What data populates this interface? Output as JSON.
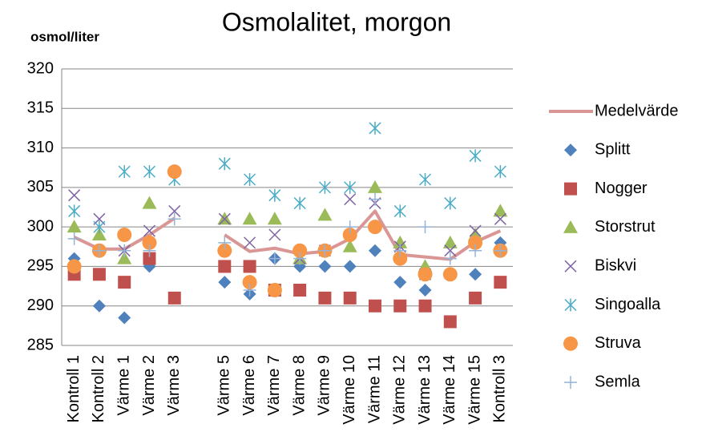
{
  "chart_data": {
    "type": "line-scatter",
    "title": "Osmolalitet, morgon",
    "y_label": "osmol/liter",
    "categories": [
      "Kontroll 1",
      "Kontroll 2",
      "Värme 1",
      "Värme 2",
      "Värme 3",
      null,
      "Värme 5",
      "Värme 6",
      "Värme 7",
      "Värme 8",
      "Värme 9",
      "Värme 10",
      "Värme 11",
      "Värme 12",
      "Värme 13",
      "Värme 14",
      "Värme 15",
      "Kontroll 3"
    ],
    "ylim": [
      285,
      320
    ],
    "yticks": [
      285,
      290,
      295,
      300,
      305,
      310,
      315,
      320
    ],
    "grid": true,
    "legend": "right",
    "series": [
      {
        "name": "Medelvärde",
        "color": "#d99694",
        "marker": "line",
        "values": [
          298.7,
          297.2,
          297.2,
          299,
          301.1,
          null,
          299,
          296.9,
          297.3,
          296.6,
          296.9,
          298.5,
          302,
          296.5,
          296.2,
          295.9,
          298.1,
          299.5
        ]
      },
      {
        "name": "Splitt",
        "color": "#4f81bd",
        "marker": "diamond",
        "values": [
          296,
          290,
          288.5,
          295,
          null,
          null,
          293,
          291.5,
          296,
          295,
          295,
          295,
          297,
          293,
          292,
          null,
          294,
          298
        ]
      },
      {
        "name": "Nogger",
        "color": "#c0504d",
        "marker": "square",
        "values": [
          294,
          294,
          293,
          296,
          291,
          null,
          295,
          295,
          292,
          292,
          291,
          291,
          290,
          290,
          290,
          288,
          291,
          293
        ]
      },
      {
        "name": "Storstrut",
        "color": "#9bbb59",
        "marker": "triangle",
        "values": [
          300,
          299,
          296,
          303,
          null,
          null,
          301,
          301,
          301,
          296,
          301.5,
          297.5,
          305,
          298,
          295,
          298,
          299,
          302
        ]
      },
      {
        "name": "Biskvi",
        "color": "#8064a2",
        "marker": "x",
        "values": [
          304,
          301,
          297,
          299.5,
          302,
          null,
          301,
          298,
          299,
          296,
          297,
          303.5,
          303,
          297.5,
          294,
          297,
          299.5,
          301
        ]
      },
      {
        "name": "Singoalla",
        "color": "#4bacc6",
        "marker": "star",
        "values": [
          302,
          300,
          307,
          307,
          306,
          null,
          308,
          306,
          304,
          303,
          305,
          305,
          312.5,
          302,
          306,
          303,
          309,
          307
        ]
      },
      {
        "name": "Struva",
        "color": "#f79646",
        "marker": "circle",
        "values": [
          295,
          297,
          299,
          298,
          307,
          null,
          297,
          293,
          292,
          297,
          297,
          299,
          300,
          296,
          294,
          294,
          298,
          297
        ]
      },
      {
        "name": "Semla",
        "color": "#95b3d7",
        "marker": "plus",
        "values": [
          298.5,
          297,
          297,
          297,
          301,
          null,
          298,
          292,
          296,
          296,
          297,
          300,
          303.5,
          297,
          300,
          296,
          297,
          297
        ]
      }
    ]
  }
}
